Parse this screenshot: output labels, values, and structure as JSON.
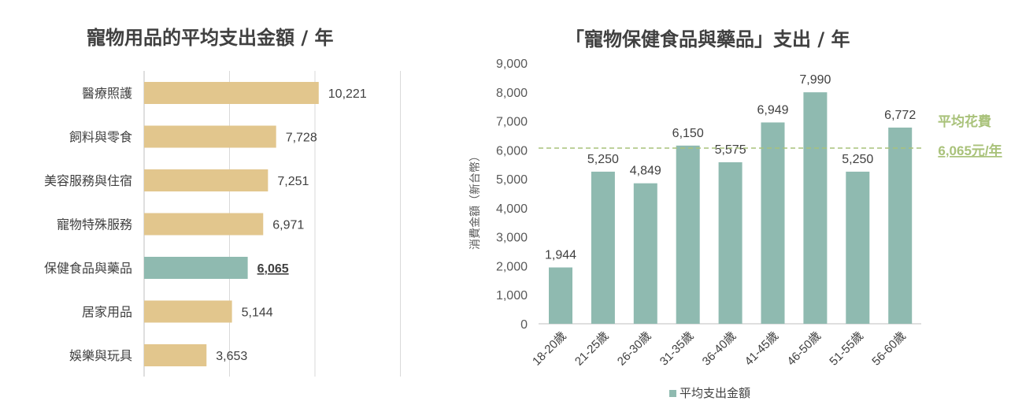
{
  "chart_data": [
    {
      "type": "bar",
      "orientation": "horizontal",
      "title": "寵物用品的平均支出金額 / 年",
      "categories": [
        "醫療照護",
        "飼料與零食",
        "美容服務與住宿",
        "寵物特殊服務",
        "保健食品與藥品",
        "居家用品",
        "娛樂與玩具"
      ],
      "values": [
        10221,
        7728,
        7251,
        6971,
        6065,
        5144,
        3653
      ],
      "value_labels": [
        "10,221",
        "7,728",
        "7,251",
        "6,971",
        "6,065",
        "5,144",
        "3,653"
      ],
      "highlight_index": 4,
      "xlim": [
        0,
        15000
      ],
      "gridlines": [
        0,
        5000,
        10000,
        15000
      ],
      "colors": {
        "default": "#E2C68D",
        "highlight": "#8FBAB0"
      }
    },
    {
      "type": "bar",
      "title": "「寵物保健食品與藥品」支出 / 年",
      "categories": [
        "18-20歲",
        "21-25歲",
        "26-30歲",
        "31-35歲",
        "36-40歲",
        "41-45歲",
        "46-50歲",
        "51-55歲",
        "56-60歲"
      ],
      "series": [
        {
          "name": "平均支出金額",
          "values": [
            1944,
            5250,
            4849,
            6150,
            5575,
            6949,
            7990,
            5250,
            6772
          ],
          "value_labels": [
            "1,944",
            "5,250",
            "4,849",
            "6,150",
            "5,575",
            "6,949",
            "7,990",
            "5,250",
            "6,772"
          ]
        }
      ],
      "ylabel": "消費金額（新台幣）",
      "ylim": [
        0,
        9000
      ],
      "yticks": [
        "0",
        "1,000",
        "2,000",
        "3,000",
        "4,000",
        "5,000",
        "6,000",
        "7,000",
        "8,000",
        "9,000"
      ],
      "reference_line": {
        "value": 6065,
        "label_line1": "平均花費",
        "label_line2": "6,065元/年",
        "color": "#A9C27A"
      },
      "legend_position": "bottom",
      "colors": {
        "bar": "#8FBAB0"
      }
    }
  ]
}
